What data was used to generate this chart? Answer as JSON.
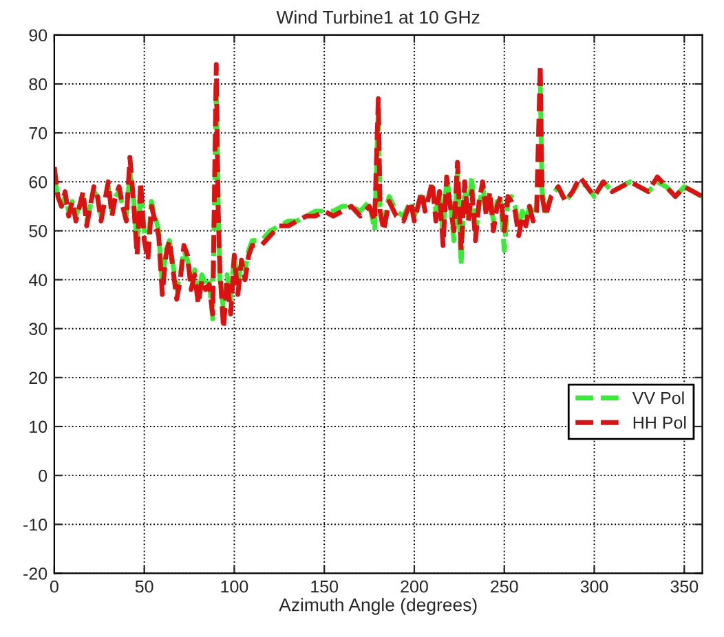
{
  "chart_data": {
    "type": "line",
    "title": "Wind Turbine1 at 10 GHz",
    "xlabel": "Azimuth Angle (degrees)",
    "xlim": [
      0,
      360
    ],
    "xticks": [
      0,
      50,
      100,
      150,
      200,
      250,
      300,
      350
    ],
    "ylim": [
      -20,
      90
    ],
    "yticks": [
      -20,
      -10,
      0,
      10,
      20,
      30,
      40,
      50,
      60,
      70,
      80,
      90
    ],
    "grid": true,
    "legend": "right",
    "line_style": "dashed",
    "marker": "none",
    "series": [
      {
        "name": "VV Pol",
        "color": "#33ee33",
        "x": [
          0,
          2,
          4,
          6,
          8,
          10,
          12,
          14,
          16,
          18,
          20,
          22,
          24,
          26,
          28,
          30,
          32,
          34,
          36,
          38,
          40,
          42,
          44,
          46,
          48,
          50,
          52,
          54,
          56,
          58,
          60,
          62,
          64,
          66,
          68,
          70,
          72,
          74,
          76,
          78,
          80,
          82,
          84,
          86,
          88,
          90,
          91,
          92,
          94,
          96,
          98,
          100,
          102,
          104,
          106,
          108,
          110,
          115,
          120,
          125,
          130,
          135,
          140,
          145,
          150,
          155,
          160,
          165,
          170,
          175,
          178,
          180,
          181,
          183,
          186,
          190,
          194,
          198,
          200,
          204,
          206,
          210,
          212,
          214,
          216,
          218,
          220,
          222,
          224,
          226,
          228,
          230,
          232,
          234,
          236,
          238,
          240,
          242,
          244,
          246,
          248,
          250,
          252,
          254,
          256,
          258,
          260,
          262,
          264,
          266,
          268,
          270,
          271,
          273,
          276,
          280,
          284,
          288,
          292,
          296,
          300,
          305,
          310,
          315,
          320,
          325,
          330,
          335,
          340,
          345,
          350,
          355,
          360
        ],
        "values": [
          61,
          57,
          55,
          57,
          54,
          56,
          53,
          55,
          57,
          52,
          55,
          58,
          57,
          53,
          56,
          59,
          54,
          57,
          58,
          55,
          53,
          62,
          57,
          47,
          58,
          50,
          46,
          56,
          53,
          50,
          39,
          46,
          48,
          43,
          38,
          41,
          46,
          44,
          40,
          42,
          37,
          41,
          39,
          40,
          32,
          80,
          57,
          40,
          34,
          41,
          36,
          45,
          39,
          44,
          42,
          46,
          48,
          48,
          50,
          51,
          52,
          52,
          53,
          54,
          54,
          54,
          55,
          55,
          54,
          56,
          50,
          75,
          55,
          52,
          57,
          54,
          53,
          56,
          53,
          57,
          56,
          59,
          54,
          58,
          49,
          61,
          56,
          48,
          62,
          43,
          59,
          53,
          61,
          49,
          55,
          59,
          54,
          57,
          52,
          56,
          56,
          46,
          56,
          57,
          55,
          51,
          54,
          52,
          55,
          53,
          55,
          80,
          58,
          54,
          57,
          59,
          56,
          58,
          60,
          59,
          57,
          60,
          58,
          59,
          60,
          59,
          58,
          60,
          59,
          57,
          59,
          58,
          57
        ]
      },
      {
        "name": "HH Pol",
        "color": "#dd1111",
        "x": [
          0,
          2,
          4,
          6,
          8,
          10,
          12,
          14,
          16,
          18,
          20,
          22,
          24,
          26,
          28,
          30,
          32,
          34,
          36,
          38,
          40,
          42,
          44,
          46,
          48,
          50,
          52,
          54,
          56,
          58,
          60,
          62,
          64,
          66,
          68,
          70,
          72,
          74,
          76,
          78,
          80,
          82,
          84,
          86,
          88,
          90,
          91,
          92,
          94,
          96,
          98,
          100,
          102,
          104,
          106,
          108,
          110,
          115,
          120,
          125,
          130,
          135,
          140,
          145,
          150,
          155,
          160,
          165,
          170,
          175,
          178,
          180,
          181,
          183,
          186,
          190,
          194,
          198,
          200,
          204,
          206,
          210,
          212,
          214,
          216,
          218,
          220,
          222,
          224,
          226,
          228,
          230,
          232,
          234,
          236,
          238,
          240,
          242,
          244,
          246,
          248,
          250,
          252,
          254,
          256,
          258,
          260,
          262,
          264,
          266,
          268,
          270,
          271,
          273,
          276,
          280,
          284,
          288,
          292,
          296,
          300,
          305,
          310,
          315,
          320,
          325,
          330,
          335,
          340,
          345,
          350,
          355,
          360
        ],
        "values": [
          63,
          57,
          55,
          58,
          53,
          56,
          52,
          55,
          58,
          51,
          55,
          59,
          57,
          52,
          56,
          60,
          53,
          57,
          59,
          55,
          52,
          65,
          56,
          45,
          60,
          48,
          44,
          55,
          52,
          49,
          37,
          45,
          48,
          42,
          36,
          40,
          47,
          45,
          38,
          41,
          35,
          40,
          38,
          39,
          33,
          84,
          55,
          42,
          30,
          40,
          33,
          45,
          37,
          44,
          40,
          45,
          47,
          47,
          49,
          51,
          51,
          52,
          53,
          53,
          54,
          53,
          54,
          55,
          53,
          55,
          52,
          77,
          54,
          50,
          56,
          53,
          52,
          56,
          52,
          58,
          54,
          60,
          52,
          58,
          47,
          61,
          55,
          50,
          64,
          46,
          60,
          52,
          58,
          48,
          56,
          60,
          53,
          58,
          50,
          55,
          57,
          50,
          57,
          56,
          54,
          49,
          53,
          51,
          55,
          52,
          54,
          84,
          57,
          53,
          57,
          59,
          56,
          58,
          61,
          59,
          57,
          60,
          58,
          59,
          60,
          59,
          58,
          61,
          59,
          57,
          59,
          58,
          57
        ]
      }
    ]
  }
}
